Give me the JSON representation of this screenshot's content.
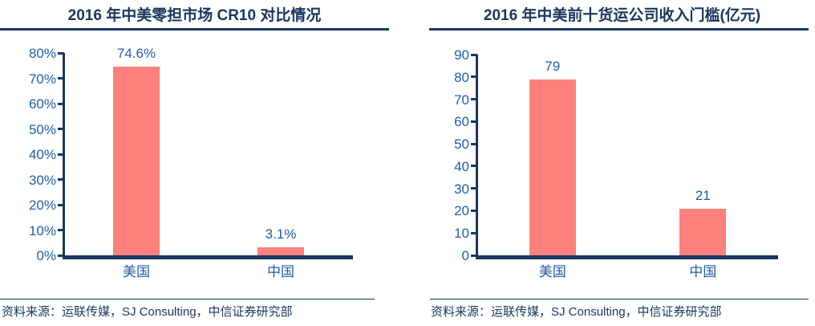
{
  "colors": {
    "navy": "#17375E",
    "blue": "#1D5FA8",
    "salmon": "#FC817D",
    "background": "#FFFFFF"
  },
  "charts": [
    {
      "title": "2016 年中美零担市场 CR10 对比情况",
      "source": "资料来源：运联传媒，SJ Consulting，中信证券研究部",
      "chart_data": {
        "type": "bar",
        "categories": [
          "美国",
          "中国"
        ],
        "values": [
          74.6,
          3.1
        ],
        "value_labels": [
          "74.6%",
          "3.1%"
        ],
        "title": "2016 年中美零担市场 CR10 对比情况",
        "xlabel": "",
        "ylabel": "",
        "ylim": [
          0,
          80
        ],
        "ytick_values": [
          0,
          10,
          20,
          30,
          40,
          50,
          60,
          70,
          80
        ],
        "ytick_labels": [
          "0%",
          "10%",
          "20%",
          "30%",
          "40%",
          "50%",
          "60%",
          "70%",
          "80%"
        ],
        "grid": false,
        "legend": "none"
      }
    },
    {
      "title": "2016 年中美前十货运公司收入门槛(亿元)",
      "source": "资料来源：运联传媒，SJ Consulting，中信证券研究部",
      "chart_data": {
        "type": "bar",
        "categories": [
          "美国",
          "中国"
        ],
        "values": [
          79,
          21
        ],
        "value_labels": [
          "79",
          "21"
        ],
        "title": "2016 年中美前十货运公司收入门槛(亿元)",
        "xlabel": "",
        "ylabel": "",
        "ylim": [
          0,
          90
        ],
        "ytick_values": [
          0,
          10,
          20,
          30,
          40,
          50,
          60,
          70,
          80,
          90
        ],
        "ytick_labels": [
          "0",
          "10",
          "20",
          "30",
          "40",
          "50",
          "60",
          "70",
          "80",
          "90"
        ],
        "grid": false,
        "legend": "none"
      }
    }
  ]
}
